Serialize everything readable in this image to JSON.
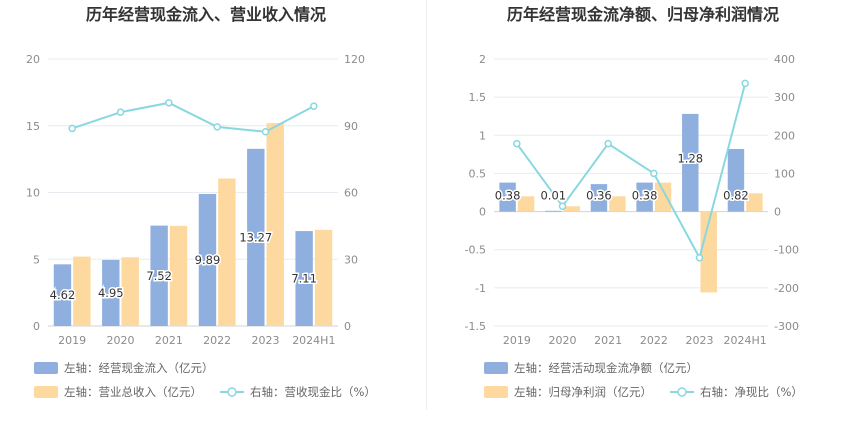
{
  "chart_data": [
    {
      "type": "bar",
      "title": "历年经营现金流入、营业收入情况",
      "categories": [
        "2019",
        "2020",
        "2021",
        "2022",
        "2023",
        "2024H1"
      ],
      "left_axis": {
        "ylim": [
          0,
          20
        ],
        "ticks": [
          0,
          5,
          10,
          15,
          20
        ]
      },
      "right_axis": {
        "ylim": [
          0,
          120
        ],
        "ticks": [
          0,
          30,
          60,
          90,
          120
        ]
      },
      "series": [
        {
          "name": "左轴：经营现金流入（亿元）",
          "kind": "bar",
          "axis": "left",
          "color": "#8fafdf",
          "values": [
            4.62,
            4.95,
            7.52,
            9.89,
            13.27,
            7.11
          ],
          "labels": [
            "4.62",
            "4.95",
            "7.52",
            "9.89",
            "13.27",
            "7.11"
          ]
        },
        {
          "name": "左轴：营业总收入（亿元）",
          "kind": "bar",
          "axis": "left",
          "color": "#fdd9a0",
          "values": [
            5.2,
            5.15,
            7.5,
            11.05,
            15.2,
            7.2
          ]
        },
        {
          "name": "右轴：营收现金比（%）",
          "kind": "line",
          "axis": "right",
          "color": "#89d8e0",
          "values": [
            88.8,
            96.1,
            100.3,
            89.5,
            87.3,
            98.8
          ]
        }
      ],
      "grid": true,
      "legend": "bottom"
    },
    {
      "type": "bar",
      "title": "历年经营现金流净额、归母净利润情况",
      "categories": [
        "2019",
        "2020",
        "2021",
        "2022",
        "2023",
        "2024H1"
      ],
      "left_axis": {
        "ylim": [
          -1.5,
          2
        ],
        "ticks": [
          -1.5,
          -1,
          -0.5,
          0,
          0.5,
          1,
          1.5,
          2
        ]
      },
      "right_axis": {
        "ylim": [
          -300,
          400
        ],
        "ticks": [
          -300,
          -200,
          -100,
          0,
          100,
          200,
          300,
          400
        ]
      },
      "series": [
        {
          "name": "左轴：经营活动现金流净额（亿元）",
          "kind": "bar",
          "axis": "left",
          "color": "#8fafdf",
          "values": [
            0.38,
            0.01,
            0.36,
            0.38,
            1.28,
            0.82
          ],
          "labels": [
            "0.38",
            "0.01",
            "0.36",
            "0.38",
            "1.28",
            "0.82"
          ]
        },
        {
          "name": "左轴：归母净利润（亿元）",
          "kind": "bar",
          "axis": "left",
          "color": "#fdd9a0",
          "values": [
            0.2,
            0.07,
            0.2,
            0.38,
            -1.06,
            0.24
          ]
        },
        {
          "name": "右轴：净现比（%）",
          "kind": "line",
          "axis": "right",
          "color": "#89d8e0",
          "values": [
            178,
            14,
            178,
            100,
            -121,
            336
          ]
        }
      ],
      "grid": true,
      "legend": "bottom"
    }
  ]
}
